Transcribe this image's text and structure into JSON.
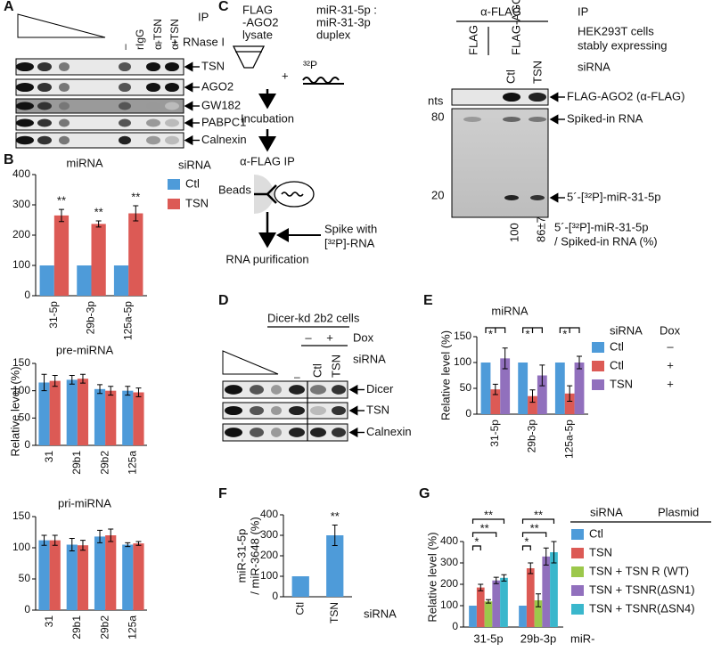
{
  "panel_labels": [
    "A",
    "B",
    "C",
    "D",
    "E",
    "F",
    "G"
  ],
  "panel_a": {
    "columns": [
      "–",
      "rIgG",
      "α-TSN",
      "α-TSN"
    ],
    "ip": "IP",
    "rnase_label": "RNase I",
    "rnase": [
      "–",
      "+"
    ],
    "bands": [
      "TSN",
      "AGO2",
      "GW182",
      "PABPC1",
      "Calnexin"
    ]
  },
  "panel_c": {
    "lysate": [
      "FLAG",
      "-AGO2",
      "lysate"
    ],
    "duplex": [
      "miR-31-5p :",
      "miR-31-3p",
      "duplex"
    ],
    "isotope": "³²P",
    "steps": [
      "Incubation",
      "α-FLAG IP",
      "RNA purification"
    ],
    "beads": "Beads",
    "spike": [
      "Spike with",
      "[³²P]-RNA"
    ],
    "ip_antibody": "α-FLAG",
    "ip": "IP",
    "cells": [
      "HEK293T cells",
      "stably expressing"
    ],
    "lanes": [
      "FLAG",
      "FLAG-AGO2"
    ],
    "sirna_label": "siRNA",
    "sirna": [
      "Ctl",
      "TSN"
    ],
    "size_unit": "nts",
    "sizes": [
      80,
      20
    ],
    "bands": [
      "FLAG-AGO2 (α-FLAG)",
      "Spiked-in RNA",
      "5´-[³²P]-miR-31-5p"
    ],
    "quant": [
      "100",
      "86±7"
    ],
    "quant_label": [
      "5´-[³²P]-miR-31-5p",
      "/ Spiked-in RNA (%)"
    ]
  },
  "panel_d": {
    "cells": "Dicer-kd 2b2 cells",
    "dox_label": "Dox",
    "dox": [
      "–",
      "+"
    ],
    "sirna_label": "siRNA",
    "lanes": [
      "–",
      "Ctl",
      "TSN"
    ],
    "bands": [
      "Dicer",
      "TSN",
      "Calnexin"
    ]
  },
  "chart_data": [
    {
      "type": "bar",
      "title": "miRNA",
      "ylabel": "Relative level (%)",
      "legend_title": "siRNA",
      "categories": [
        "31-5p",
        "29b-3p",
        "125a-5p"
      ],
      "series": [
        {
          "name": "Ctl",
          "color": "#4e9bd9",
          "values": [
            100,
            100,
            100
          ]
        },
        {
          "name": "TSN",
          "color": "#dc5a55",
          "values": [
            265,
            237,
            272
          ],
          "errors": [
            20,
            10,
            25
          ]
        }
      ],
      "annotations": [
        "**",
        "**",
        "**"
      ],
      "ylim": [
        0,
        400
      ],
      "yticks": [
        0,
        100,
        200,
        300,
        400
      ]
    },
    {
      "type": "bar",
      "title": "pre-miRNA",
      "categories": [
        "31",
        "29b1",
        "29b2",
        "125a"
      ],
      "series": [
        {
          "name": "Ctl",
          "color": "#4e9bd9",
          "values": [
            115,
            120,
            103,
            100
          ],
          "errors": [
            15,
            8,
            8,
            8
          ]
        },
        {
          "name": "TSN",
          "color": "#dc5a55",
          "values": [
            118,
            122,
            100,
            97
          ],
          "errors": [
            10,
            8,
            8,
            8
          ]
        }
      ],
      "ylim": [
        0,
        150
      ],
      "yticks": [
        0,
        50,
        100,
        150
      ]
    },
    {
      "type": "bar",
      "title": "pri-miRNA",
      "categories": [
        "31",
        "29b1",
        "29b2",
        "125a"
      ],
      "series": [
        {
          "name": "Ctl",
          "color": "#4e9bd9",
          "values": [
            112,
            105,
            118,
            105
          ],
          "errors": [
            8,
            10,
            10,
            3
          ]
        },
        {
          "name": "TSN",
          "color": "#dc5a55",
          "values": [
            112,
            104,
            120,
            107
          ],
          "errors": [
            8,
            8,
            10,
            3
          ]
        }
      ],
      "ylim": [
        0,
        150
      ],
      "yticks": [
        0,
        50,
        100,
        150
      ]
    },
    {
      "type": "bar",
      "title": "miRNA",
      "ylabel": "Relative level (%)",
      "legend_titles": [
        "siRNA",
        "Dox"
      ],
      "categories": [
        "31-5p",
        "29b-3p",
        "125a-5p"
      ],
      "series": [
        {
          "name": "Ctl",
          "dox": "–",
          "color": "#4e9bd9",
          "values": [
            100,
            100,
            100
          ]
        },
        {
          "name": "Ctl",
          "dox": "+",
          "color": "#dc5a55",
          "values": [
            48,
            35,
            40
          ],
          "errors": [
            10,
            12,
            15
          ]
        },
        {
          "name": "TSN",
          "dox": "+",
          "color": "#9170bd",
          "values": [
            108,
            75,
            100
          ],
          "errors": [
            20,
            20,
            12
          ]
        }
      ],
      "annotations": [
        "*",
        "*",
        "*"
      ],
      "ylim": [
        0,
        150
      ],
      "yticks": [
        0,
        50,
        100,
        150
      ]
    },
    {
      "type": "bar",
      "ylabel": [
        "miR-31-5p",
        "/ miR-3648 (%)"
      ],
      "xlabel": "siRNA",
      "categories": [
        "Ctl",
        "TSN"
      ],
      "color": "#4e9bd9",
      "values": [
        100,
        300
      ],
      "errors": [
        null,
        50
      ],
      "annotations": [
        null,
        "**"
      ],
      "ylim": [
        0,
        400
      ],
      "yticks": [
        0,
        100,
        200,
        300,
        400
      ]
    },
    {
      "type": "bar",
      "ylabel": "Relative level (%)",
      "xlabel": "miR-",
      "legend_titles": [
        "siRNA",
        "Plasmid"
      ],
      "categories": [
        "31-5p",
        "29b-3p"
      ],
      "series": [
        {
          "name": "Ctl",
          "color": "#4e9bd9",
          "values": [
            100,
            100
          ]
        },
        {
          "name": "TSN",
          "color": "#dc5a55",
          "values": [
            185,
            275
          ],
          "errors": [
            15,
            25
          ]
        },
        {
          "name": "TSN + TSN R (WT)",
          "color": "#9cc84b",
          "values": [
            120,
            125
          ],
          "errors": [
            8,
            30
          ]
        },
        {
          "name": "TSN + TSNR(ΔSN1)",
          "color": "#9170bd",
          "values": [
            218,
            330
          ],
          "errors": [
            15,
            40
          ]
        },
        {
          "name": "TSN + TSNR(ΔSN4)",
          "color": "#3ab7cc",
          "values": [
            230,
            350
          ],
          "errors": [
            15,
            50
          ]
        }
      ],
      "annotations": [
        [
          "*",
          "**",
          "**"
        ],
        [
          "*",
          "**",
          "**"
        ]
      ],
      "ylim": [
        0,
        400
      ],
      "yticks": [
        0,
        100,
        200,
        300,
        400
      ]
    }
  ]
}
